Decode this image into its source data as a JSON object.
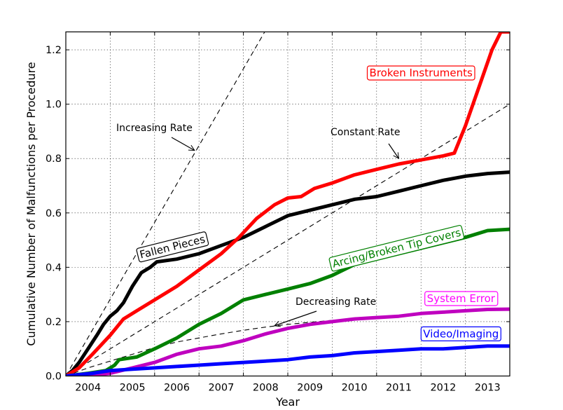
{
  "chart_data": {
    "type": "line",
    "title": "",
    "xlabel": "Year",
    "ylabel": "Cumulative Number of Malfunctions per Procedure",
    "xlim": [
      2004,
      2014
    ],
    "ylim": [
      0,
      1.266
    ],
    "grid": true,
    "x_tick_labels": [
      "2004",
      "2005",
      "2006",
      "2007",
      "2008",
      "2009",
      "2010",
      "2011",
      "2012",
      "2013"
    ],
    "x_tick_label_positions": [
      2004.5,
      2005.5,
      2006.5,
      2007.5,
      2008.5,
      2009.5,
      2010.5,
      2011.5,
      2012.5,
      2013.5
    ],
    "x_gridlines": [
      2005,
      2006,
      2007,
      2008,
      2009,
      2010,
      2011,
      2012,
      2013
    ],
    "y_ticks": [
      0.0,
      0.2,
      0.4,
      0.6,
      0.8,
      1.0,
      1.2
    ],
    "y_tick_labels": [
      "0.0",
      "0.2",
      "0.4",
      "0.6",
      "0.8",
      "1.0",
      "1.2"
    ],
    "series": [
      {
        "name": "Fallen Pieces",
        "color": "#000000",
        "x": [
          2004.0,
          2004.15,
          2004.3,
          2004.5,
          2004.7,
          2004.85,
          2005.0,
          2005.15,
          2005.3,
          2005.5,
          2005.7,
          2005.9,
          2006.05,
          2006.5,
          2007.0,
          2007.5,
          2008.0,
          2008.5,
          2009.0,
          2009.5,
          2010.0,
          2010.5,
          2011.0,
          2011.5,
          2012.0,
          2012.5,
          2013.0,
          2013.5,
          2014.0
        ],
        "y": [
          0.0,
          0.02,
          0.05,
          0.1,
          0.15,
          0.19,
          0.22,
          0.24,
          0.27,
          0.33,
          0.38,
          0.4,
          0.42,
          0.43,
          0.45,
          0.48,
          0.51,
          0.55,
          0.59,
          0.61,
          0.63,
          0.65,
          0.66,
          0.68,
          0.7,
          0.72,
          0.735,
          0.745,
          0.75
        ]
      },
      {
        "name": "Broken Instruments",
        "color": "#ff0000",
        "x": [
          2004.0,
          2004.3,
          2004.6,
          2005.0,
          2005.3,
          2005.6,
          2006.0,
          2006.5,
          2007.0,
          2007.5,
          2007.9,
          2008.3,
          2008.7,
          2009.0,
          2009.3,
          2009.6,
          2010.0,
          2010.5,
          2011.0,
          2011.5,
          2012.0,
          2012.5,
          2012.75,
          2013.0,
          2013.3,
          2013.6,
          2013.8,
          2014.0
        ],
        "y": [
          0.0,
          0.03,
          0.08,
          0.15,
          0.21,
          0.24,
          0.28,
          0.33,
          0.39,
          0.45,
          0.51,
          0.58,
          0.63,
          0.655,
          0.66,
          0.69,
          0.71,
          0.74,
          0.76,
          0.78,
          0.795,
          0.81,
          0.82,
          0.92,
          1.06,
          1.2,
          1.266,
          1.266
        ]
      },
      {
        "name": "Arcing/Broken Tip Covers",
        "color": "#008000",
        "x": [
          2004.0,
          2004.5,
          2004.9,
          2005.1,
          2005.2,
          2005.6,
          2006.0,
          2006.5,
          2007.0,
          2007.5,
          2008.0,
          2008.5,
          2009.0,
          2009.5,
          2010.0,
          2010.5,
          2011.0,
          2011.5,
          2012.0,
          2012.5,
          2013.0,
          2013.5,
          2014.0
        ],
        "y": [
          0.0,
          0.01,
          0.02,
          0.04,
          0.06,
          0.07,
          0.1,
          0.14,
          0.19,
          0.23,
          0.28,
          0.3,
          0.32,
          0.34,
          0.37,
          0.41,
          0.43,
          0.45,
          0.47,
          0.49,
          0.51,
          0.535,
          0.54
        ]
      },
      {
        "name": "System Error",
        "color": "#bf00bf",
        "x": [
          2004.0,
          2004.5,
          2005.0,
          2005.5,
          2006.0,
          2006.5,
          2007.0,
          2007.5,
          2008.0,
          2008.5,
          2009.0,
          2009.5,
          2010.0,
          2010.5,
          2011.0,
          2011.5,
          2012.0,
          2012.5,
          2013.0,
          2013.5,
          2014.0
        ],
        "y": [
          0.0,
          0.0,
          0.01,
          0.03,
          0.05,
          0.08,
          0.1,
          0.11,
          0.13,
          0.155,
          0.175,
          0.19,
          0.2,
          0.21,
          0.215,
          0.22,
          0.23,
          0.235,
          0.24,
          0.245,
          0.246
        ]
      },
      {
        "name": "Video/Imaging",
        "color": "#0000ff",
        "x": [
          2004.0,
          2004.6,
          2005.0,
          2005.5,
          2006.0,
          2006.5,
          2007.0,
          2007.5,
          2008.0,
          2008.5,
          2009.0,
          2009.5,
          2010.0,
          2010.5,
          2011.0,
          2011.5,
          2012.0,
          2012.5,
          2013.0,
          2013.5,
          2014.0
        ],
        "y": [
          0.0,
          0.01,
          0.02,
          0.025,
          0.03,
          0.035,
          0.04,
          0.045,
          0.05,
          0.055,
          0.06,
          0.07,
          0.075,
          0.085,
          0.09,
          0.095,
          0.1,
          0.1,
          0.105,
          0.11,
          0.11
        ]
      }
    ],
    "reference_lines": [
      {
        "name": "Increasing Rate",
        "style": "dashed",
        "color": "#000000",
        "x": [
          2004.0,
          2008.48
        ],
        "y": [
          0.0,
          1.266
        ]
      },
      {
        "name": "Constant Rate",
        "style": "dashed",
        "color": "#000000",
        "x": [
          2004.0,
          2014.0
        ],
        "y": [
          0.0,
          1.0
        ]
      },
      {
        "name": "Decreasing Rate",
        "style": "dashed",
        "color": "#000000",
        "x": [
          2004.0,
          2004.5,
          2005.0,
          2005.5,
          2006.0,
          2006.5,
          2007.0,
          2007.5,
          2008.0,
          2008.5,
          2009.0,
          2010.0,
          2011.0,
          2012.0,
          2013.0,
          2014.0
        ],
        "y": [
          0.0,
          0.03,
          0.055,
          0.08,
          0.105,
          0.125,
          0.14,
          0.155,
          0.168,
          0.18,
          0.19,
          0.205,
          0.218,
          0.23,
          0.24,
          0.25
        ]
      }
    ],
    "annotations": [
      {
        "text": "Increasing Rate",
        "arrow_to": [
          2006.9,
          0.83
        ]
      },
      {
        "text": "Constant Rate",
        "arrow_to": [
          2011.5,
          0.8
        ]
      },
      {
        "text": "Decreasing Rate",
        "arrow_to": [
          2008.7,
          0.185
        ]
      }
    ],
    "series_labels": [
      {
        "text": "Broken Instruments",
        "color": "#ff0000",
        "at": [
          2012.0,
          1.115
        ],
        "rotation_deg": 0
      },
      {
        "text": "Fallen Pieces",
        "color": "#000000",
        "at": [
          2006.4,
          0.475
        ],
        "rotation_deg": -14
      },
      {
        "text": "Arcing/Broken Tip Covers",
        "color": "#008000",
        "at": [
          2011.45,
          0.47
        ],
        "rotation_deg": -14
      },
      {
        "text": "System Error",
        "color": "#ff00ff",
        "at": [
          2012.9,
          0.285
        ],
        "rotation_deg": 0
      },
      {
        "text": "Video/Imaging",
        "color": "#0000ff",
        "at": [
          2012.9,
          0.155
        ],
        "rotation_deg": 0
      }
    ]
  }
}
